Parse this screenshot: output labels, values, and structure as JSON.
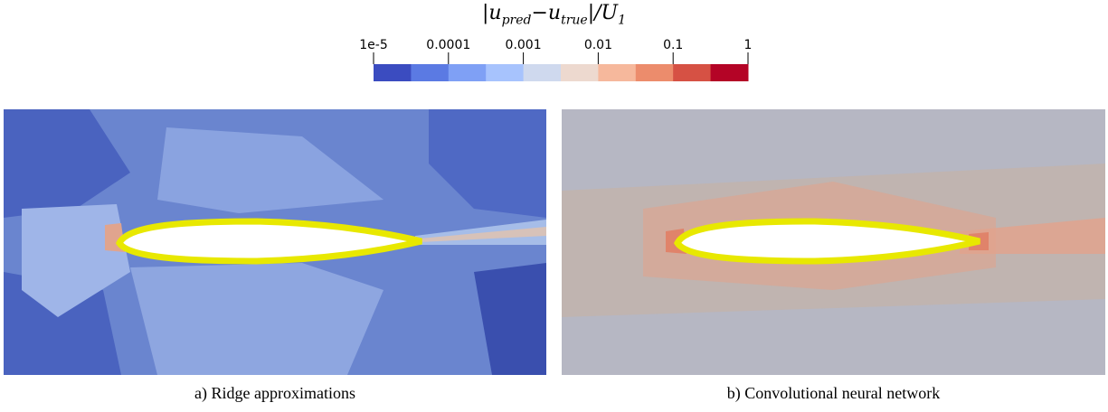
{
  "colorbar": {
    "title_main": "|u",
    "title_sub1": "pred",
    "title_minus": "−u",
    "title_sub2": "true",
    "title_rest": "|/U",
    "title_sub3": "1",
    "scale": "log",
    "range": [
      1e-05,
      1
    ],
    "tick_labels": [
      "1e-5",
      "0.0001",
      "0.001",
      "0.01",
      "0.1",
      "1"
    ],
    "colors": [
      "#3b4cc0",
      "#5b7ae3",
      "#7fa0f5",
      "#a7c3fd",
      "#cfd9ee",
      "#edd9cf",
      "#f6b89c",
      "#ec8c6c",
      "#d65144",
      "#b40426"
    ]
  },
  "panels": [
    {
      "caption": "a) Ridge approximations",
      "background": "#6a85cf",
      "wake_color": "#a6bde8",
      "surface_outline": "#e8e800"
    },
    {
      "caption": "b) Convolutional neural network",
      "background": "#c0b4b0",
      "wake_color": "#e2a38c",
      "surface_outline": "#e8e800"
    }
  ]
}
